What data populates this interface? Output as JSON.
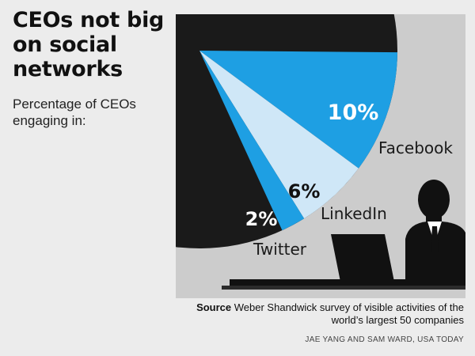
{
  "title": "CEOs not big on social networks",
  "subtitle": "Percentage of CEOs engaging in:",
  "chart_data": {
    "type": "pie",
    "categories": [
      "Facebook",
      "LinkedIn",
      "Twitter"
    ],
    "values": [
      10,
      6,
      2
    ],
    "value_labels": [
      "10%",
      "6%",
      "2%"
    ],
    "title": "CEOs not big on social networks",
    "subtitle": "Percentage of CEOs engaging in:",
    "unit": "%",
    "colors": {
      "Facebook": "#1e9fe3",
      "LinkedIn": "#cfe7f7",
      "Twitter": "#1e9fe3"
    }
  },
  "source": {
    "label": "Source",
    "text": "Weber Shandwick survey of visible activities of the world’s largest 50 companies"
  },
  "credit": "JAE YANG AND SAM WARD, USA TODAY",
  "colors": {
    "background": "#ececec",
    "panel_light": "#cccccc",
    "dark": "#1a1a1a",
    "blue": "#1e9fe3",
    "light_blue": "#cfe7f7"
  }
}
